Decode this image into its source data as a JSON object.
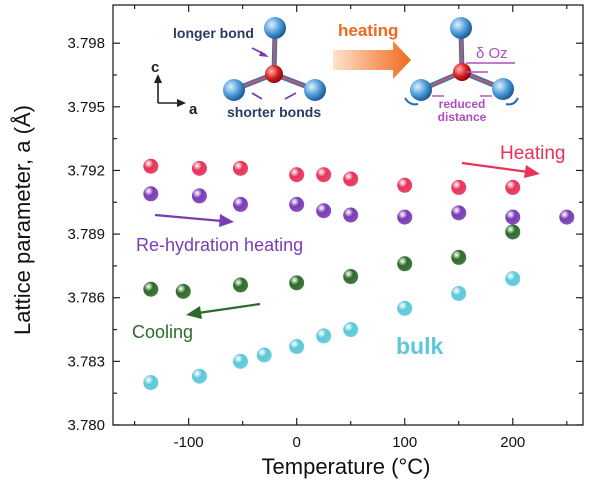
{
  "chart_data": {
    "type": "scatter",
    "xlabel": "Temperature (°C)",
    "ylabel": "Lattice parameter, a (Å)",
    "xlim": [
      -170,
      265
    ],
    "ylim": [
      3.78,
      3.7998
    ],
    "x_ticks": [
      "-100",
      "0",
      "100",
      "200"
    ],
    "y_ticks": [
      "3.780",
      "3.783",
      "3.786",
      "3.789",
      "3.792",
      "3.795",
      "3.798"
    ],
    "series": [
      {
        "name": "Heating",
        "color": "#e8325a",
        "x": [
          -135,
          -90,
          -52,
          0,
          25,
          50,
          100,
          150,
          200
        ],
        "y": [
          3.7922,
          3.7921,
          3.7921,
          3.7918,
          3.7918,
          3.7916,
          3.7913,
          3.7912,
          3.7912
        ]
      },
      {
        "name": "Re-hydration heating",
        "color": "#7a3cb4",
        "x": [
          -135,
          -90,
          -52,
          0,
          25,
          50,
          100,
          150,
          200,
          250
        ],
        "y": [
          3.7909,
          3.7908,
          3.7904,
          3.7904,
          3.7901,
          3.7899,
          3.7898,
          3.79,
          3.7898,
          3.7898
        ]
      },
      {
        "name": "Cooling",
        "color": "#2e6b2a",
        "x": [
          -135,
          -105,
          -52,
          0,
          50,
          100,
          150,
          200
        ],
        "y": [
          3.7864,
          3.7863,
          3.7866,
          3.7867,
          3.787,
          3.7876,
          3.7879,
          3.7891
        ]
      },
      {
        "name": "bulk",
        "color": "#5cc8d8",
        "x": [
          -135,
          -90,
          -52,
          -30,
          0,
          25,
          50,
          100,
          150,
          200
        ],
        "y": [
          3.782,
          3.7823,
          3.783,
          3.7833,
          3.7837,
          3.7842,
          3.7845,
          3.7855,
          3.7862,
          3.7869
        ]
      }
    ],
    "annotations": {
      "heating": "Heating",
      "rehydration": "Re-hydration heating",
      "cooling": "Cooling",
      "bulk": "bulk"
    }
  },
  "inset": {
    "longer_bond": "longer bond",
    "shorter_bonds": "shorter bonds",
    "c_axis": "c",
    "a_axis": "a",
    "heating": "heating",
    "delta": "δ Oz",
    "reduced_1": "reduced",
    "reduced_2": "distance"
  }
}
